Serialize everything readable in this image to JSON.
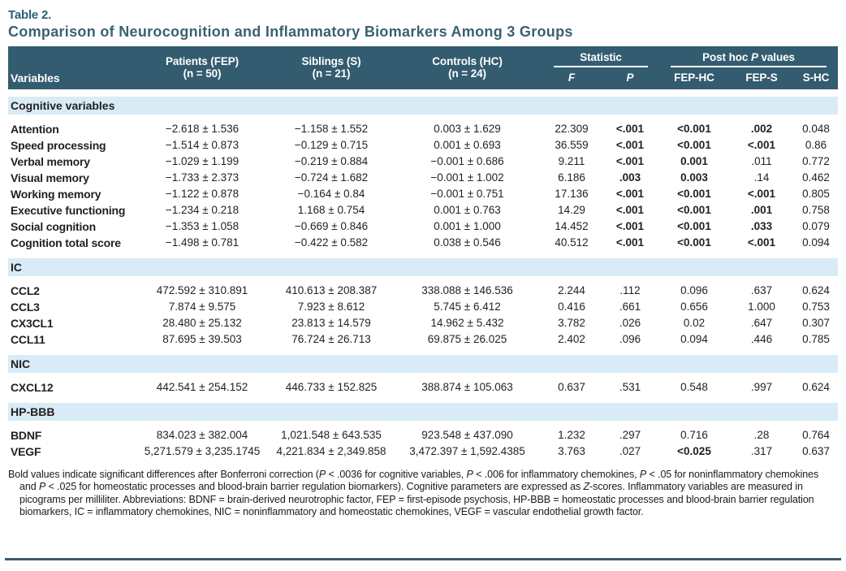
{
  "page": {
    "table_label": "Table 2.",
    "title": "Comparison of Neurocognition and Inflammatory Biomarkers Among 3 Groups"
  },
  "colors": {
    "header_bg": "#335C70",
    "band_bg": "#D9EBF6",
    "accent": "#2B5F78",
    "title_color": "#3A6170",
    "rule": "#41586A"
  },
  "table": {
    "header": {
      "variables": "Variables",
      "groups": [
        {
          "line1": "Patients (FEP)",
          "line2": "(n = 50)"
        },
        {
          "line1": "Siblings (S)",
          "line2": "(n = 21)"
        },
        {
          "line1": "Controls (HC)",
          "line2": "(n = 24)"
        }
      ],
      "statistic_label": "Statistic",
      "posthoc_segments": [
        {
          "t": "Post hoc "
        },
        {
          "t": "P",
          "i": true
        },
        {
          "t": " values"
        }
      ],
      "stat_cols": [
        "F",
        "P"
      ],
      "posthoc_cols": [
        "FEP-HC",
        "FEP-S",
        "S-HC"
      ]
    },
    "sections": [
      {
        "label": "Cognitive variables",
        "rows": [
          {
            "variable": "Attention",
            "cells": [
              {
                "t": "−2.618 ± 1.536"
              },
              {
                "t": "−1.158 ± 1.552"
              },
              {
                "t": "0.003 ± 1.629"
              },
              {
                "t": "22.309"
              },
              {
                "t": "<.001",
                "b": true
              },
              {
                "t": "<0.001",
                "b": true
              },
              {
                "t": ".002",
                "b": true
              },
              {
                "t": "0.048"
              }
            ]
          },
          {
            "variable": "Speed processing",
            "cells": [
              {
                "t": "−1.514 ± 0.873"
              },
              {
                "t": "−0.129 ± 0.715"
              },
              {
                "t": "0.001 ± 0.693"
              },
              {
                "t": "36.559"
              },
              {
                "t": "<.001",
                "b": true
              },
              {
                "t": "<0.001",
                "b": true
              },
              {
                "t": "<.001",
                "b": true
              },
              {
                "t": "0.86"
              }
            ]
          },
          {
            "variable": "Verbal memory",
            "cells": [
              {
                "t": "−1.029 ± 1.199"
              },
              {
                "t": "−0.219 ± 0.884"
              },
              {
                "t": "−0.001 ± 0.686"
              },
              {
                "t": "9.211"
              },
              {
                "t": "<.001",
                "b": true
              },
              {
                "t": "0.001",
                "b": true
              },
              {
                "t": ".011"
              },
              {
                "t": "0.772"
              }
            ]
          },
          {
            "variable": "Visual memory",
            "cells": [
              {
                "t": "−1.733 ± 2.373"
              },
              {
                "t": "−0.724 ± 1.682"
              },
              {
                "t": "−0.001 ± 1.002"
              },
              {
                "t": "6.186"
              },
              {
                "t": ".003",
                "b": true
              },
              {
                "t": "0.003",
                "b": true
              },
              {
                "t": ".14"
              },
              {
                "t": "0.462"
              }
            ]
          },
          {
            "variable": "Working memory",
            "cells": [
              {
                "t": "−1.122 ± 0.878"
              },
              {
                "t": "−0.164 ± 0.84"
              },
              {
                "t": "−0.001 ± 0.751"
              },
              {
                "t": "17.136"
              },
              {
                "t": "<.001",
                "b": true
              },
              {
                "t": "<0.001",
                "b": true
              },
              {
                "t": "<.001",
                "b": true
              },
              {
                "t": "0.805"
              }
            ]
          },
          {
            "variable": "Executive functioning",
            "cells": [
              {
                "t": "−1.234 ± 0.218"
              },
              {
                "t": "1.168 ± 0.754"
              },
              {
                "t": "0.001 ± 0.763"
              },
              {
                "t": "14.29"
              },
              {
                "t": "<.001",
                "b": true
              },
              {
                "t": "<0.001",
                "b": true
              },
              {
                "t": ".001",
                "b": true
              },
              {
                "t": "0.758"
              }
            ]
          },
          {
            "variable": "Social cognition",
            "cells": [
              {
                "t": "−1.353 ± 1.058"
              },
              {
                "t": "−0.669 ± 0.846"
              },
              {
                "t": "0.001 ± 1.000"
              },
              {
                "t": "14.452"
              },
              {
                "t": "<.001",
                "b": true
              },
              {
                "t": "<0.001",
                "b": true
              },
              {
                "t": ".033",
                "b": true
              },
              {
                "t": "0.079"
              }
            ]
          },
          {
            "variable": "Cognition total score",
            "cells": [
              {
                "t": "−1.498 ± 0.781"
              },
              {
                "t": "−0.422 ± 0.582"
              },
              {
                "t": "0.038 ± 0.546"
              },
              {
                "t": "40.512"
              },
              {
                "t": "<.001",
                "b": true
              },
              {
                "t": "<0.001",
                "b": true
              },
              {
                "t": "<.001",
                "b": true
              },
              {
                "t": "0.094"
              }
            ]
          }
        ]
      },
      {
        "label": "IC",
        "rows": [
          {
            "variable": "CCL2",
            "cells": [
              {
                "t": "472.592 ± 310.891"
              },
              {
                "t": "410.613 ± 208.387"
              },
              {
                "t": "338.088 ± 146.536"
              },
              {
                "t": "2.244"
              },
              {
                "t": ".112"
              },
              {
                "t": "0.096"
              },
              {
                "t": ".637"
              },
              {
                "t": "0.624"
              }
            ]
          },
          {
            "variable": "CCL3",
            "cells": [
              {
                "t": "7.874 ± 9.575"
              },
              {
                "t": "7.923 ± 8.612"
              },
              {
                "t": "5.745 ± 6.412"
              },
              {
                "t": "0.416"
              },
              {
                "t": ".661"
              },
              {
                "t": "0.656"
              },
              {
                "t": "1.000"
              },
              {
                "t": "0.753"
              }
            ]
          },
          {
            "variable": "CX3CL1",
            "cells": [
              {
                "t": "28.480 ± 25.132"
              },
              {
                "t": "23.813 ± 14.579"
              },
              {
                "t": "14.962 ± 5.432"
              },
              {
                "t": "3.782"
              },
              {
                "t": ".026"
              },
              {
                "t": "0.02"
              },
              {
                "t": ".647"
              },
              {
                "t": "0.307"
              }
            ]
          },
          {
            "variable": "CCL11",
            "cells": [
              {
                "t": "87.695 ± 39.503"
              },
              {
                "t": "76.724 ± 26.713"
              },
              {
                "t": "69.875 ± 26.025"
              },
              {
                "t": "2.402"
              },
              {
                "t": ".096"
              },
              {
                "t": "0.094"
              },
              {
                "t": ".446"
              },
              {
                "t": "0.785"
              }
            ]
          }
        ]
      },
      {
        "label": "NIC",
        "rows": [
          {
            "variable": "CXCL12",
            "cells": [
              {
                "t": "442.541 ± 254.152"
              },
              {
                "t": "446.733 ± 152.825"
              },
              {
                "t": "388.874 ± 105.063"
              },
              {
                "t": "0.637"
              },
              {
                "t": ".531"
              },
              {
                "t": "0.548"
              },
              {
                "t": ".997"
              },
              {
                "t": "0.624"
              }
            ]
          }
        ]
      },
      {
        "label": "HP-BBB",
        "rows": [
          {
            "variable": "BDNF",
            "cells": [
              {
                "t": "834.023 ± 382.004"
              },
              {
                "t": "1,021.548 ± 643.535"
              },
              {
                "t": "923.548 ± 437.090"
              },
              {
                "t": "1.232"
              },
              {
                "t": ".297"
              },
              {
                "t": "0.716"
              },
              {
                "t": ".28"
              },
              {
                "t": "0.764"
              }
            ]
          },
          {
            "variable": "VEGF",
            "cells": [
              {
                "t": "5,271.579 ± 3,235.1745"
              },
              {
                "t": "4,221.834 ± 2,349.858"
              },
              {
                "t": "3,472.397 ± 1,592.4385"
              },
              {
                "t": "3.763"
              },
              {
                "t": ".027"
              },
              {
                "t": "<0.025",
                "b": true
              },
              {
                "t": ".317"
              },
              {
                "t": "0.637"
              }
            ]
          }
        ]
      }
    ]
  },
  "footnote": {
    "segments": [
      {
        "t": "Bold values indicate significant differences after Bonferroni correction ("
      },
      {
        "t": "P",
        "i": true
      },
      {
        "t": " < .0036 for cognitive variables, "
      },
      {
        "t": "P",
        "i": true
      },
      {
        "t": " < .006 for inflammatory chemokines, "
      },
      {
        "t": "P",
        "i": true
      },
      {
        "t": " < .05 for noninflammatory chemokines and "
      },
      {
        "t": "P",
        "i": true
      },
      {
        "t": " < .025 for homeostatic processes and blood-brain barrier regulation biomarkers). Cognitive parameters are expressed as "
      },
      {
        "t": "Z",
        "i": true
      },
      {
        "t": "-scores. Inflammatory variables are measured in picograms per milliliter. Abbreviations: BDNF = brain-derived neurotrophic factor, FEP = first-episode psychosis, HP-BBB = homeostatic processes and blood-brain barrier regulation biomarkers, IC = inflammatory chemokines, NIC = noninflammatory and homeostatic chemokines, VEGF = vascular endothelial growth factor."
      }
    ]
  }
}
